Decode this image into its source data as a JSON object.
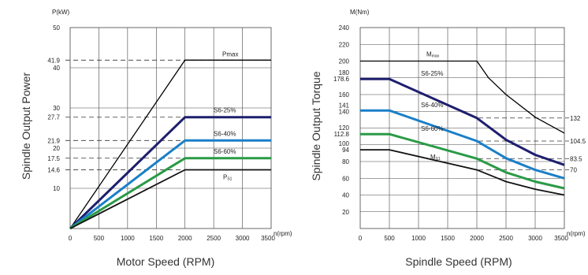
{
  "chart_data": [
    {
      "type": "line",
      "side_title": "Spindle Output Power",
      "xlabel": "Motor Speed (RPM)",
      "x_unit": "n(rpm)",
      "y_unit": "P(kW)",
      "xlim": [
        0,
        3500
      ],
      "ylim": [
        0,
        50
      ],
      "x_ticks": [
        "0",
        "500",
        "1000",
        "1500",
        "2000",
        "2500",
        "3000",
        "3500"
      ],
      "y_ticks": [
        "10",
        "14.6",
        "17.5",
        "20",
        "21.9",
        "27.7",
        "30",
        "40",
        "41.9",
        "50"
      ],
      "grid": true,
      "series": [
        {
          "name": "Pmax",
          "color": "#000000",
          "x": [
            0,
            2000,
            3500
          ],
          "y": [
            0,
            41.9,
            41.9
          ]
        },
        {
          "name": "S6-25%",
          "color": "#1e1e6e",
          "x": [
            0,
            2000,
            3500
          ],
          "y": [
            0,
            27.7,
            27.7
          ]
        },
        {
          "name": "S6-40%",
          "color": "#1a7fc8",
          "x": [
            0,
            2000,
            3500
          ],
          "y": [
            0,
            21.9,
            21.9
          ]
        },
        {
          "name": "S6-60%",
          "color": "#2a9a46",
          "x": [
            0,
            2000,
            3500
          ],
          "y": [
            0,
            17.5,
            17.5
          ]
        },
        {
          "name": "PS1",
          "color": "#111111",
          "x": [
            0,
            2000,
            3500
          ],
          "y": [
            0,
            14.6,
            14.6
          ]
        }
      ],
      "dashed_levels": [
        41.9,
        27.7,
        21.9,
        17.5,
        14.6
      ]
    },
    {
      "type": "line",
      "side_title": "Spindle Output Torque",
      "xlabel": "Spindle Speed (RPM)",
      "x_unit": "n(rpm)",
      "y_unit": "M(Nm)",
      "xlim": [
        0,
        3500
      ],
      "ylim": [
        0,
        240
      ],
      "x_ticks": [
        "0",
        "500",
        "1000",
        "1500",
        "2000",
        "2500",
        "3000",
        "3500"
      ],
      "y_ticks": [
        "20",
        "40",
        "60",
        "80",
        "94",
        "100",
        "112.8",
        "120",
        "140",
        "141",
        "160",
        "178.6",
        "180",
        "200",
        "220",
        "240"
      ],
      "right_labels": [
        "132",
        "104.5",
        "83.5",
        "70"
      ],
      "grid": true,
      "series": [
        {
          "name": "Mmax",
          "color": "#000000",
          "x": [
            0,
            2000,
            2200,
            2500,
            3000,
            3500
          ],
          "y": [
            200,
            200,
            180,
            160,
            133,
            114
          ]
        },
        {
          "name": "S6-25%",
          "color": "#1e1e6e",
          "x": [
            0,
            500,
            2000,
            2500,
            3000,
            3500
          ],
          "y": [
            178.6,
            178.6,
            132,
            106,
            88,
            76
          ]
        },
        {
          "name": "S6-40%",
          "color": "#1a7fc8",
          "x": [
            0,
            500,
            2000,
            2500,
            3000,
            3500
          ],
          "y": [
            141,
            141,
            104.5,
            84,
            70,
            60
          ]
        },
        {
          "name": "S6-60%",
          "color": "#2a9a46",
          "x": [
            0,
            500,
            2000,
            2500,
            3000,
            3500
          ],
          "y": [
            112.8,
            112.8,
            83.5,
            67,
            56,
            48
          ]
        },
        {
          "name": "MS1",
          "color": "#111111",
          "x": [
            0,
            500,
            2000,
            2500,
            3000,
            3500
          ],
          "y": [
            94,
            94,
            70,
            56,
            47,
            40
          ]
        }
      ],
      "dashed_levels": [
        132,
        104.5,
        83.5,
        70
      ]
    }
  ]
}
